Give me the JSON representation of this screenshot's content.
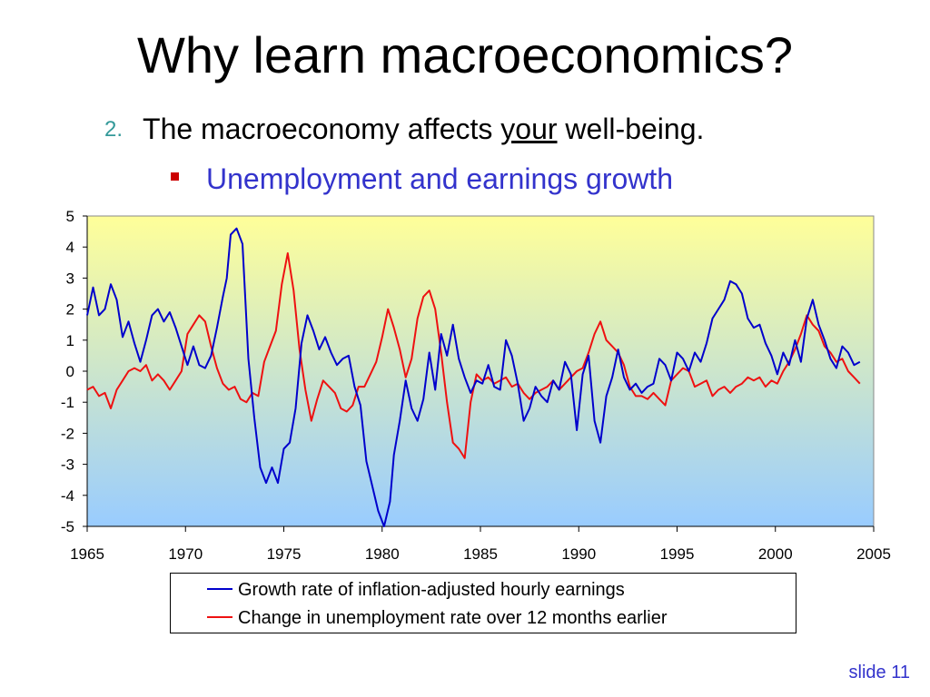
{
  "slide": {
    "title": "Why learn macroeconomics?",
    "point_number": "2.",
    "point_before": "The macroeconomy affects ",
    "point_underlined": "your",
    "point_after": " well-being.",
    "subpoint": "Unemployment and earnings growth",
    "slide_number": "slide 11"
  },
  "colors": {
    "series1": "#0000cc",
    "series2": "#ee1111",
    "plot_top": "#ffff99",
    "plot_bottom": "#99ccff"
  },
  "chart_data": {
    "type": "line",
    "title": "",
    "xlabel": "",
    "ylabel": "",
    "xlim": [
      1965,
      2005
    ],
    "ylim": [
      -5,
      5
    ],
    "x_ticks": [
      "1965",
      "1970",
      "1975",
      "1980",
      "1985",
      "1990",
      "1995",
      "2000",
      "2005"
    ],
    "y_ticks": [
      "5",
      "4",
      "3",
      "2",
      "1",
      "0",
      "-1",
      "-2",
      "-3",
      "-4",
      "-5"
    ],
    "grid": false,
    "legend_position": "bottom",
    "series": [
      {
        "name": "Growth rate of inflation-adjusted hourly earnings",
        "x": [
          1965.0,
          1965.3,
          1965.6,
          1965.9,
          1966.2,
          1966.5,
          1966.8,
          1967.1,
          1967.4,
          1967.7,
          1968.0,
          1968.3,
          1968.6,
          1968.9,
          1969.2,
          1969.5,
          1969.8,
          1970.1,
          1970.4,
          1970.7,
          1971.0,
          1971.3,
          1971.6,
          1971.9,
          1972.1,
          1972.3,
          1972.6,
          1972.9,
          1973.2,
          1973.5,
          1973.8,
          1974.1,
          1974.4,
          1974.7,
          1975.0,
          1975.3,
          1975.6,
          1975.9,
          1976.2,
          1976.5,
          1976.8,
          1977.1,
          1977.4,
          1977.7,
          1978.0,
          1978.3,
          1978.6,
          1978.9,
          1979.2,
          1979.5,
          1979.8,
          1980.1,
          1980.4,
          1980.6,
          1980.9,
          1981.2,
          1981.5,
          1981.8,
          1982.1,
          1982.4,
          1982.7,
          1983.0,
          1983.3,
          1983.6,
          1983.9,
          1984.2,
          1984.5,
          1984.8,
          1985.1,
          1985.4,
          1985.7,
          1986.0,
          1986.3,
          1986.6,
          1986.9,
          1987.2,
          1987.5,
          1987.8,
          1988.1,
          1988.4,
          1988.7,
          1989.0,
          1989.3,
          1989.6,
          1989.9,
          1990.2,
          1990.5,
          1990.8,
          1991.1,
          1991.4,
          1991.7,
          1992.0,
          1992.3,
          1992.6,
          1992.9,
          1993.2,
          1993.5,
          1993.8,
          1994.1,
          1994.4,
          1994.7,
          1995.0,
          1995.3,
          1995.6,
          1995.9,
          1996.2,
          1996.5,
          1996.8,
          1997.1,
          1997.4,
          1997.7,
          1998.0,
          1998.3,
          1998.6,
          1998.9,
          1999.2,
          1999.5,
          1999.8,
          2000.1,
          2000.4,
          2000.7,
          2001.0,
          2001.3,
          2001.6,
          2001.9,
          2002.2,
          2002.5,
          2002.8,
          2003.1,
          2003.4,
          2003.7,
          2004.0,
          2004.3
        ],
        "y": [
          1.8,
          2.7,
          1.8,
          2.0,
          2.8,
          2.3,
          1.1,
          1.6,
          0.9,
          0.3,
          1.0,
          1.8,
          2.0,
          1.6,
          1.9,
          1.4,
          0.8,
          0.2,
          0.8,
          0.2,
          0.1,
          0.5,
          1.4,
          2.4,
          3.0,
          4.4,
          4.6,
          4.1,
          0.4,
          -1.5,
          -3.1,
          -3.6,
          -3.1,
          -3.6,
          -2.5,
          -2.3,
          -1.2,
          0.9,
          1.8,
          1.3,
          0.7,
          1.1,
          0.6,
          0.2,
          0.4,
          0.5,
          -0.5,
          -1.1,
          -2.9,
          -3.7,
          -4.5,
          -5.0,
          -4.2,
          -2.7,
          -1.6,
          -0.3,
          -1.2,
          -1.6,
          -0.9,
          0.6,
          -0.6,
          1.2,
          0.5,
          1.5,
          0.4,
          -0.2,
          -0.7,
          -0.3,
          -0.4,
          0.2,
          -0.5,
          -0.6,
          1.0,
          0.5,
          -0.4,
          -1.6,
          -1.2,
          -0.5,
          -0.8,
          -1.0,
          -0.3,
          -0.6,
          0.3,
          -0.1,
          -1.9,
          -0.1,
          0.5,
          -1.6,
          -2.3,
          -0.8,
          -0.2,
          0.7,
          -0.2,
          -0.6,
          -0.4,
          -0.7,
          -0.5,
          -0.4,
          0.4,
          0.2,
          -0.3,
          0.6,
          0.4,
          0.0,
          0.6,
          0.3,
          0.9,
          1.7,
          2.0,
          2.3,
          2.9,
          2.8,
          2.5,
          1.7,
          1.4,
          1.5,
          0.9,
          0.5,
          -0.1,
          0.6,
          0.2,
          1.0,
          0.3,
          1.7,
          2.3,
          1.5,
          1.0,
          0.4,
          0.1,
          0.8,
          0.6,
          0.2,
          0.3
        ]
      },
      {
        "name": "Change in unemployment rate over 12 months earlier",
        "x": [
          1965.0,
          1965.3,
          1965.6,
          1965.9,
          1966.2,
          1966.5,
          1966.8,
          1967.1,
          1967.4,
          1967.7,
          1968.0,
          1968.3,
          1968.6,
          1968.9,
          1969.2,
          1969.5,
          1969.8,
          1970.1,
          1970.4,
          1970.7,
          1971.0,
          1971.3,
          1971.6,
          1971.9,
          1972.2,
          1972.5,
          1972.8,
          1973.1,
          1973.4,
          1973.7,
          1974.0,
          1974.3,
          1974.6,
          1974.9,
          1975.2,
          1975.5,
          1975.8,
          1976.1,
          1976.4,
          1976.7,
          1977.0,
          1977.3,
          1977.6,
          1977.9,
          1978.2,
          1978.5,
          1978.8,
          1979.1,
          1979.4,
          1979.7,
          1980.0,
          1980.3,
          1980.6,
          1980.9,
          1981.2,
          1981.5,
          1981.8,
          1982.1,
          1982.4,
          1982.7,
          1983.0,
          1983.3,
          1983.6,
          1983.9,
          1984.2,
          1984.5,
          1984.8,
          1985.1,
          1985.4,
          1985.7,
          1986.0,
          1986.3,
          1986.6,
          1986.9,
          1987.2,
          1987.5,
          1987.8,
          1988.1,
          1988.4,
          1988.7,
          1989.0,
          1989.3,
          1989.6,
          1989.9,
          1990.2,
          1990.5,
          1990.8,
          1991.1,
          1991.4,
          1991.7,
          1992.0,
          1992.3,
          1992.6,
          1992.9,
          1993.2,
          1993.5,
          1993.8,
          1994.1,
          1994.4,
          1994.7,
          1995.0,
          1995.3,
          1995.6,
          1995.9,
          1996.2,
          1996.5,
          1996.8,
          1997.1,
          1997.4,
          1997.7,
          1998.0,
          1998.3,
          1998.6,
          1998.9,
          1999.2,
          1999.5,
          1999.8,
          2000.1,
          2000.4,
          2000.7,
          2001.0,
          2001.3,
          2001.6,
          2001.9,
          2002.2,
          2002.5,
          2002.8,
          2003.1,
          2003.4,
          2003.7,
          2004.0,
          2004.3
        ],
        "y": [
          -0.6,
          -0.5,
          -0.8,
          -0.7,
          -1.2,
          -0.6,
          -0.3,
          0.0,
          0.1,
          0.0,
          0.2,
          -0.3,
          -0.1,
          -0.3,
          -0.6,
          -0.3,
          0.0,
          1.2,
          1.5,
          1.8,
          1.6,
          0.8,
          0.1,
          -0.4,
          -0.6,
          -0.5,
          -0.9,
          -1.0,
          -0.7,
          -0.8,
          0.3,
          0.8,
          1.3,
          2.8,
          3.8,
          2.6,
          0.7,
          -0.6,
          -1.6,
          -0.9,
          -0.3,
          -0.5,
          -0.7,
          -1.2,
          -1.3,
          -1.1,
          -0.5,
          -0.5,
          -0.1,
          0.3,
          1.1,
          2.0,
          1.4,
          0.7,
          -0.2,
          0.4,
          1.7,
          2.4,
          2.6,
          2.0,
          0.6,
          -1.0,
          -2.3,
          -2.5,
          -2.8,
          -1.0,
          -0.1,
          -0.3,
          -0.2,
          -0.4,
          -0.3,
          -0.2,
          -0.5,
          -0.4,
          -0.7,
          -0.9,
          -0.7,
          -0.6,
          -0.5,
          -0.3,
          -0.6,
          -0.4,
          -0.2,
          0.0,
          0.1,
          0.6,
          1.2,
          1.6,
          1.0,
          0.8,
          0.6,
          0.2,
          -0.5,
          -0.8,
          -0.8,
          -0.9,
          -0.7,
          -0.9,
          -1.1,
          -0.3,
          -0.1,
          0.1,
          0.0,
          -0.5,
          -0.4,
          -0.3,
          -0.8,
          -0.6,
          -0.5,
          -0.7,
          -0.5,
          -0.4,
          -0.2,
          -0.3,
          -0.2,
          -0.5,
          -0.3,
          -0.4,
          0.0,
          0.3,
          0.7,
          1.2,
          1.8,
          1.5,
          1.3,
          0.8,
          0.6,
          0.3,
          0.4,
          0.0,
          -0.2,
          -0.4
        ]
      }
    ]
  }
}
